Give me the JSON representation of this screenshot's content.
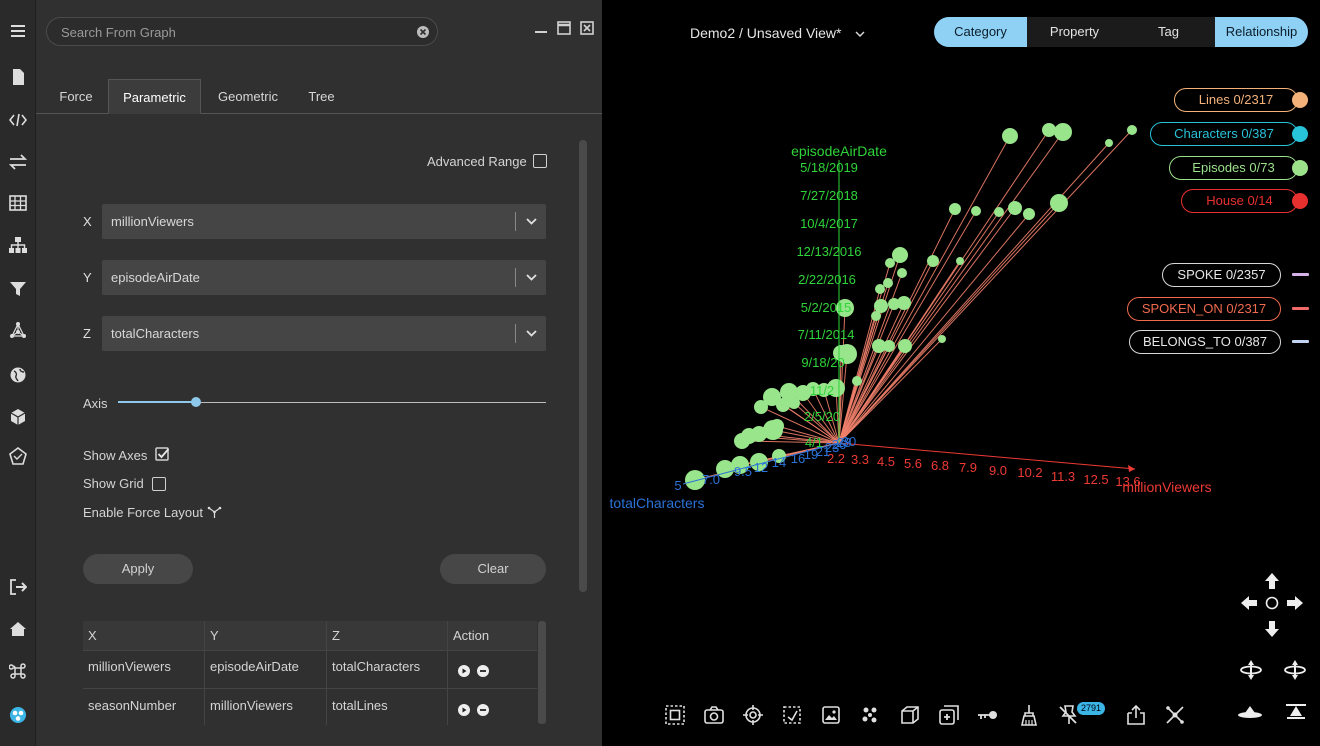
{
  "search": {
    "placeholder": "Search From Graph"
  },
  "tabs": [
    {
      "label": "Force"
    },
    {
      "label": "Parametric"
    },
    {
      "label": "Geometric"
    },
    {
      "label": "Tree"
    }
  ],
  "advanced_range": {
    "label": "Advanced Range",
    "checked": false
  },
  "axes": {
    "x": {
      "letter": "X",
      "value": "millionViewers"
    },
    "y": {
      "letter": "Y",
      "value": "episodeAirDate"
    },
    "z": {
      "letter": "Z",
      "value": "totalCharacters"
    }
  },
  "axis_slider": {
    "label": "Axis",
    "level": 0.18
  },
  "options": {
    "show_axes": {
      "label": "Show Axes",
      "checked": true
    },
    "show_grid": {
      "label": "Show Grid",
      "checked": false
    },
    "force_layout": {
      "label": "Enable Force Layout"
    }
  },
  "buttons": {
    "apply": "Apply",
    "clear": "Clear"
  },
  "table": {
    "headers": [
      "X",
      "Y",
      "Z",
      "Action"
    ],
    "rows": [
      [
        "millionViewers",
        "episodeAirDate",
        "totalCharacters"
      ],
      [
        "seasonNumber",
        "millionViewers",
        "totalLines"
      ]
    ]
  },
  "view": {
    "title": "Demo2 / Unsaved View*"
  },
  "segments": [
    {
      "label": "Category",
      "on": true
    },
    {
      "label": "Property",
      "on": false
    },
    {
      "label": "Tag",
      "on": false
    },
    {
      "label": "Relationship",
      "on": true
    }
  ],
  "legend_nodes": [
    {
      "label": "Lines 0/2317",
      "color": "#f4b27a"
    },
    {
      "label": "Characters 0/387",
      "color": "#29c3d9"
    },
    {
      "label": "Episodes 0/73",
      "color": "#9be28a"
    },
    {
      "label": "House 0/14",
      "color": "#e8312e"
    }
  ],
  "legend_edges": [
    {
      "label": "SPOKE 0/2357",
      "border": "#d8d8d8",
      "text": "#e6e6e6",
      "bar": "#d7b2e9"
    },
    {
      "label": "SPOKEN_ON 0/2317",
      "border": "#f06a4e",
      "text": "#f06a4e",
      "bar": "#f06a6a"
    },
    {
      "label": "BELONGS_TO 0/387",
      "border": "#d8d8d8",
      "text": "#e6e6e6",
      "bar": "#c3d4f2"
    }
  ],
  "chart_axes": {
    "y": {
      "label": "episodeAirDate",
      "ticks": [
        "5/18/2019",
        "7/27/2018",
        "10/4/2017",
        "12/13/2016",
        "2/22/2016",
        "5/2/2015",
        "7/11/2014",
        "9/18/20",
        "11/2",
        "2/5/20",
        "4/1"
      ],
      "color": "#2fd43a"
    },
    "x": {
      "label": "millionViewers",
      "ticks": [
        "2.2",
        "3.3",
        "4.5",
        "5.6",
        "6.8",
        "7.9",
        "9.0",
        "10.2",
        "11.3",
        "12.5",
        "13.6"
      ],
      "color": "#ef3a35"
    },
    "z": {
      "label": "totalCharacters",
      "ticks": [
        "5",
        "7.0",
        "9.5",
        "12",
        "14",
        "16",
        "19",
        "21",
        "23",
        "26",
        "28",
        "30"
      ],
      "color": "#2a72d8"
    }
  },
  "toolbar": {
    "badge": "2791"
  },
  "colors": {
    "node": "#98e58b",
    "edge": "#f0806b",
    "accent": "#8fd0f5"
  }
}
